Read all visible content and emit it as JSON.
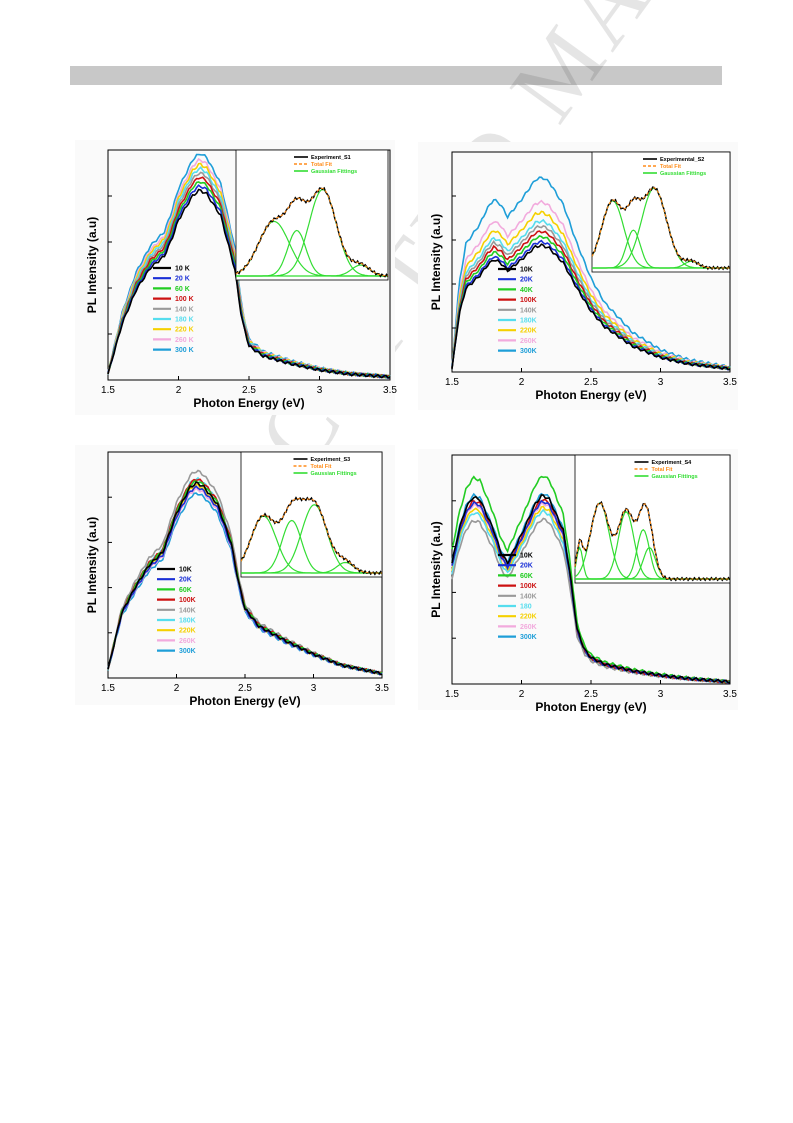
{
  "header": {
    "bar_color": "#c8c8c8"
  },
  "watermark": {
    "text": "ACCEPTED MANUSCRIPT"
  },
  "chart_data": [
    {
      "panel": 1,
      "type": "line",
      "xlabel": "Photon Energy (eV)",
      "ylabel": "PL Intensity (a.u)",
      "xlim": [
        1.5,
        3.5
      ],
      "xticks": [
        "1.5",
        "2",
        "2.5",
        "3",
        "3.5"
      ],
      "legend_position": "center-left",
      "series": [
        {
          "name": "10 K",
          "color": "#000000"
        },
        {
          "name": "20 K",
          "color": "#1a2fd6"
        },
        {
          "name": "60 K",
          "color": "#22cc22"
        },
        {
          "name": "100 K",
          "color": "#cc1111"
        },
        {
          "name": "140 K",
          "color": "#999999"
        },
        {
          "name": "180 K",
          "color": "#55ddee"
        },
        {
          "name": "220 K",
          "color": "#f5d000"
        },
        {
          "name": "260 K",
          "color": "#f2aadd"
        },
        {
          "name": "300 K",
          "color": "#1e9ed8"
        }
      ],
      "x": [
        1.5,
        1.6,
        1.7,
        1.8,
        1.85,
        1.9,
        1.95,
        2.0,
        2.1,
        2.15,
        2.2,
        2.3,
        2.4,
        2.45,
        2.5,
        2.6,
        2.8,
        3.0,
        3.2,
        3.5
      ],
      "peak_y": [
        3,
        28,
        45,
        56,
        59,
        62,
        70,
        80,
        92,
        95,
        93,
        82,
        55,
        30,
        17,
        12,
        8,
        5,
        3,
        1.5
      ],
      "peak_scales": [
        0.87,
        0.89,
        0.91,
        0.93,
        0.95,
        0.97,
        0.99,
        1.01,
        1.04
      ],
      "inset": {
        "legend": [
          {
            "name": "Experiment_S1",
            "color": "#000000"
          },
          {
            "name": "Total Fit",
            "color": "#ff8c1a"
          },
          {
            "name": "Gaussian Fittings",
            "color": "#33dd33"
          }
        ],
        "gaussians": [
          [
            0.25,
            0.6,
            0.1
          ],
          [
            0.4,
            0.5,
            0.06
          ],
          [
            0.57,
            0.95,
            0.09
          ],
          [
            0.82,
            0.12,
            0.06
          ]
        ]
      }
    },
    {
      "panel": 2,
      "type": "line",
      "xlabel": "Photon Energy (eV)",
      "ylabel": "PL Intensity (a.u)",
      "xlim": [
        1.5,
        3.5
      ],
      "xticks": [
        "1.5",
        "2",
        "2.5",
        "3",
        "3.5"
      ],
      "legend_position": "center",
      "series": [
        {
          "name": "10K",
          "color": "#000000"
        },
        {
          "name": "20K",
          "color": "#1a2fd6"
        },
        {
          "name": "40K",
          "color": "#22cc22"
        },
        {
          "name": "100K",
          "color": "#cc1111"
        },
        {
          "name": "140K",
          "color": "#999999"
        },
        {
          "name": "180K",
          "color": "#55ddee"
        },
        {
          "name": "220K",
          "color": "#f5d000"
        },
        {
          "name": "260K",
          "color": "#f2aadd"
        },
        {
          "name": "300K",
          "color": "#1e9ed8"
        }
      ],
      "x": [
        1.5,
        1.55,
        1.6,
        1.7,
        1.75,
        1.8,
        1.85,
        1.9,
        2.0,
        2.1,
        2.15,
        2.2,
        2.3,
        2.4,
        2.5,
        2.6,
        2.8,
        3.0,
        3.2,
        3.5
      ],
      "peak_y": [
        2,
        35,
        52,
        60,
        66,
        70,
        68,
        63,
        70,
        78,
        79,
        77,
        68,
        52,
        38,
        28,
        16,
        9,
        5,
        2
      ],
      "peak_scales": [
        0.73,
        0.75,
        0.78,
        0.81,
        0.84,
        0.87,
        0.92,
        0.98,
        1.12
      ],
      "inset": {
        "legend": [
          {
            "name": "Experimental_S2",
            "color": "#000000"
          },
          {
            "name": "Total Fit",
            "color": "#ff8c1a"
          },
          {
            "name": "Gaussian Fittings",
            "color": "#33dd33"
          }
        ],
        "gaussians": [
          [
            0.15,
            0.8,
            0.08
          ],
          [
            0.3,
            0.45,
            0.05
          ],
          [
            0.45,
            0.95,
            0.09
          ],
          [
            0.72,
            0.08,
            0.05
          ]
        ]
      }
    },
    {
      "panel": 3,
      "type": "line",
      "xlabel": "Photon Energy (eV)",
      "ylabel": "PL Intensity (a.u)",
      "xlim": [
        1.5,
        3.5
      ],
      "xticks": [
        "1.5",
        "2",
        "2.5",
        "3",
        "3.5"
      ],
      "legend_position": "center-left",
      "series": [
        {
          "name": "10K",
          "color": "#000000"
        },
        {
          "name": "20K",
          "color": "#1a2fd6"
        },
        {
          "name": "60K",
          "color": "#22cc22"
        },
        {
          "name": "100K",
          "color": "#cc1111"
        },
        {
          "name": "140K",
          "color": "#999999"
        },
        {
          "name": "180K",
          "color": "#55ddee"
        },
        {
          "name": "220K",
          "color": "#f5d000"
        },
        {
          "name": "260K",
          "color": "#f2aadd"
        },
        {
          "name": "300K",
          "color": "#1e9ed8"
        }
      ],
      "x": [
        1.5,
        1.6,
        1.7,
        1.8,
        1.85,
        1.9,
        2.0,
        2.1,
        2.15,
        2.2,
        2.3,
        2.4,
        2.45,
        2.5,
        2.6,
        2.8,
        3.0,
        3.2,
        3.5
      ],
      "peak_y": [
        4,
        30,
        42,
        52,
        55,
        58,
        76,
        88,
        90,
        88,
        80,
        62,
        45,
        32,
        24,
        17,
        11,
        6,
        2
      ],
      "peak_scales": [
        0.96,
        0.94,
        0.97,
        0.98,
        1.02,
        0.98,
        0.95,
        0.93,
        0.91
      ],
      "inset": {
        "legend": [
          {
            "name": "Experiment_S3",
            "color": "#000000"
          },
          {
            "name": "Total Fit",
            "color": "#ff8c1a"
          },
          {
            "name": "Gaussian Fittings",
            "color": "#33dd33"
          }
        ],
        "gaussians": [
          [
            0.16,
            0.65,
            0.09
          ],
          [
            0.36,
            0.6,
            0.07
          ],
          [
            0.52,
            0.78,
            0.09
          ],
          [
            0.74,
            0.12,
            0.06
          ]
        ]
      }
    },
    {
      "panel": 4,
      "type": "line",
      "xlabel": "Photon Energy (eV)",
      "ylabel": "PL Intensity (a.u)",
      "xlim": [
        1.5,
        3.5
      ],
      "xticks": [
        "1.5",
        "2",
        "2.5",
        "3",
        "3.5"
      ],
      "legend_position": "center-left",
      "series": [
        {
          "name": "10K",
          "color": "#000000"
        },
        {
          "name": "20K",
          "color": "#1a2fd6"
        },
        {
          "name": "60K",
          "color": "#22cc22"
        },
        {
          "name": "100K",
          "color": "#cc1111"
        },
        {
          "name": "140K",
          "color": "#999999"
        },
        {
          "name": "180",
          "color": "#55ddee"
        },
        {
          "name": "220K",
          "color": "#f5d000"
        },
        {
          "name": "260K",
          "color": "#f2aadd"
        },
        {
          "name": "300K",
          "color": "#1e9ed8"
        }
      ],
      "x": [
        1.5,
        1.55,
        1.6,
        1.65,
        1.7,
        1.8,
        1.85,
        1.9,
        2.0,
        2.1,
        2.15,
        2.2,
        2.3,
        2.35,
        2.4,
        2.45,
        2.5,
        2.6,
        2.8,
        3.0,
        3.2,
        3.5
      ],
      "peak_y": [
        55,
        70,
        80,
        85,
        84,
        70,
        60,
        55,
        68,
        82,
        86,
        84,
        70,
        50,
        25,
        16,
        12,
        9,
        6,
        4,
        2.5,
        1
      ],
      "peak_scales": [
        0.96,
        0.93,
        1.06,
        0.94,
        0.84,
        0.88,
        0.9,
        0.92,
        0.97
      ],
      "inset": {
        "legend": [
          {
            "name": "Experiment_S4",
            "color": "#000000"
          },
          {
            "name": "Total Fit",
            "color": "#ff8c1a"
          },
          {
            "name": "Gaussian Fittings",
            "color": "#33dd33"
          }
        ],
        "gaussians": [
          [
            0.03,
            0.35,
            0.02
          ],
          [
            0.16,
            0.85,
            0.06
          ],
          [
            0.33,
            0.75,
            0.05
          ],
          [
            0.44,
            0.55,
            0.04
          ],
          [
            0.48,
            0.35,
            0.04
          ]
        ]
      }
    }
  ]
}
